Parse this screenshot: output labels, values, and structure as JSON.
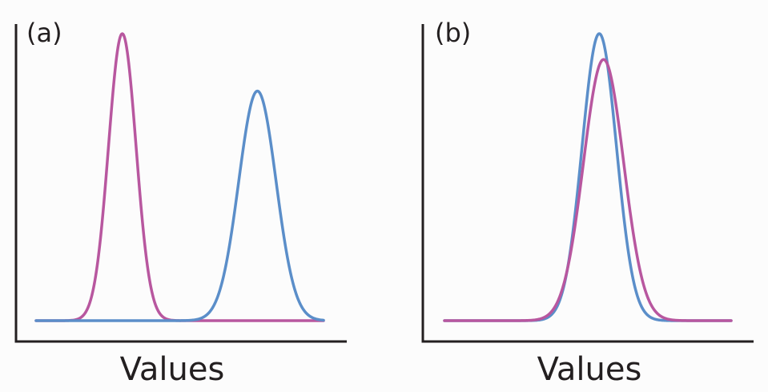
{
  "chart_data": [
    {
      "type": "line",
      "panel_label": "(a)",
      "xlabel": "Values",
      "ylabel": "",
      "xlim": [
        0,
        100
      ],
      "ylim": [
        0,
        100
      ],
      "grid": false,
      "legend": "none",
      "series": [
        {
          "color": "#b8579f",
          "peak_x": 30,
          "height": 100,
          "sigma": 4.8
        },
        {
          "color": "#5b8ec9",
          "peak_x": 77,
          "height": 80,
          "sigma": 6.5
        }
      ]
    },
    {
      "type": "line",
      "panel_label": "(b)",
      "xlabel": "Values",
      "ylabel": "",
      "xlim": [
        0,
        100
      ],
      "ylim": [
        0,
        100
      ],
      "grid": false,
      "legend": "none",
      "series": [
        {
          "color": "#5b8ec9",
          "peak_x": 54,
          "height": 100,
          "sigma": 6.0
        },
        {
          "color": "#b8579f",
          "peak_x": 55.5,
          "height": 91,
          "sigma": 7.0
        }
      ]
    }
  ]
}
